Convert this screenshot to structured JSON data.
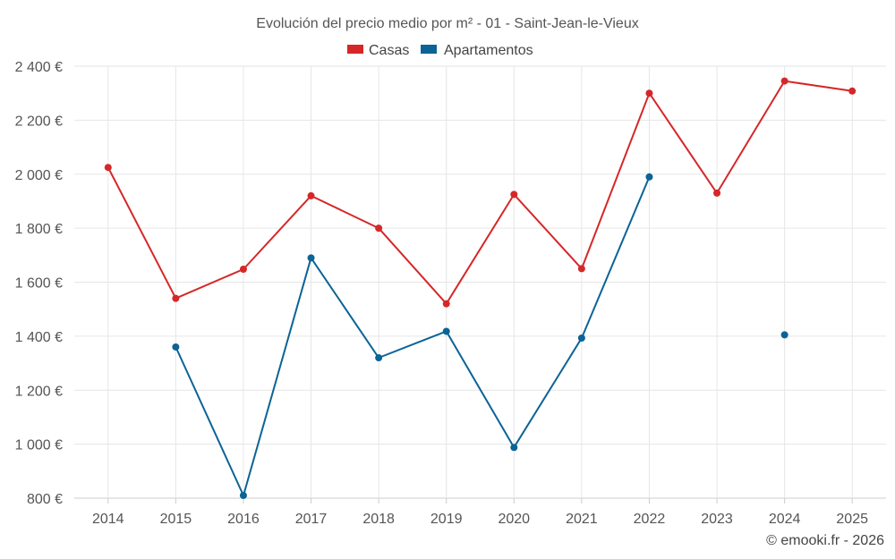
{
  "chart_data": {
    "type": "line",
    "title": "Evolución del precio medio por m² - 01 - Saint-Jean-le-Vieux",
    "categories": [
      "2014",
      "2015",
      "2016",
      "2017",
      "2018",
      "2019",
      "2020",
      "2021",
      "2022",
      "2023",
      "2024",
      "2025"
    ],
    "ylim": [
      800,
      2400
    ],
    "yticks": [
      800,
      1000,
      1200,
      1400,
      1600,
      1800,
      2000,
      2200,
      2400
    ],
    "ytick_labels": [
      "800 €",
      "1 000 €",
      "1 200 €",
      "1 400 €",
      "1 600 €",
      "1 800 €",
      "2 000 €",
      "2 200 €",
      "2 400 €"
    ],
    "grid": true,
    "legend_position": "top-center",
    "series": [
      {
        "name": "Casas",
        "color": "#d62728",
        "values": [
          2025,
          1540,
          1648,
          1920,
          1800,
          1520,
          1925,
          1650,
          2300,
          1930,
          2345,
          2308
        ]
      },
      {
        "name": "Apartamentos",
        "color": "#0b6396",
        "values": [
          null,
          1360,
          810,
          1690,
          1320,
          1418,
          988,
          1393,
          1990,
          null,
          1405,
          null
        ]
      }
    ]
  },
  "credit": "© emooki.fr - 2026"
}
